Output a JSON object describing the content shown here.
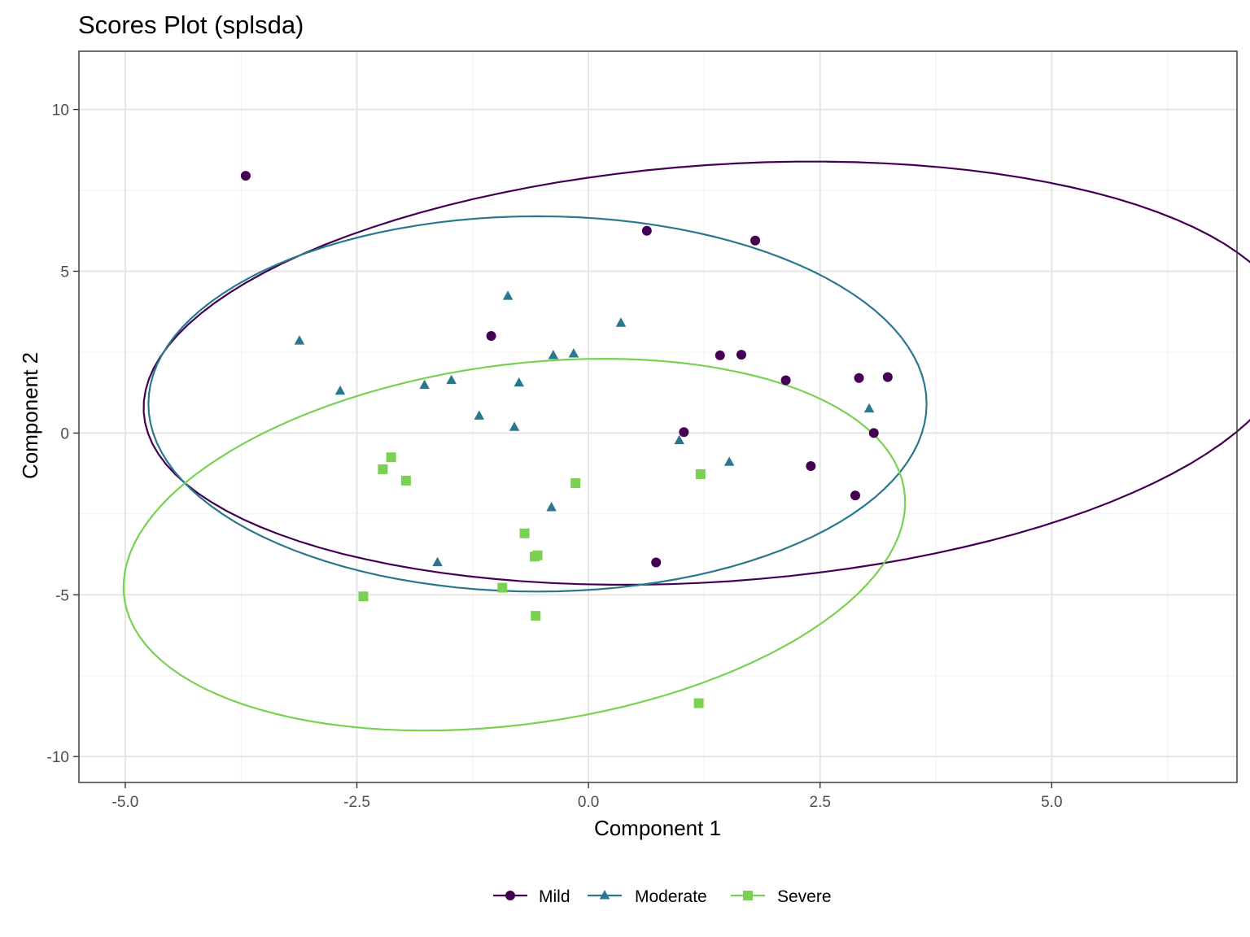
{
  "chart_data": {
    "type": "scatter",
    "title": "Scores Plot (splsda)",
    "xlabel": "Component 1",
    "ylabel": "Component 2",
    "xlim": [
      -5.5,
      7.0
    ],
    "ylim": [
      -10.8,
      11.8
    ],
    "x_ticks": [
      {
        "value": -5.0,
        "label": "-5.0"
      },
      {
        "value": -2.5,
        "label": "-2.5"
      },
      {
        "value": 0.0,
        "label": "0.0"
      },
      {
        "value": 2.5,
        "label": "2.5"
      },
      {
        "value": 5.0,
        "label": "5.0"
      }
    ],
    "y_ticks": [
      {
        "value": -10,
        "label": "-10"
      },
      {
        "value": -5,
        "label": "-5"
      },
      {
        "value": 0,
        "label": "0"
      },
      {
        "value": 5,
        "label": "5"
      },
      {
        "value": 10,
        "label": "10"
      }
    ],
    "grid": true,
    "legend_position": "bottom",
    "series": [
      {
        "name": "Mild",
        "color": "#440154",
        "marker": "circle",
        "points": [
          [
            -3.7,
            7.95
          ],
          [
            0.63,
            6.25
          ],
          [
            1.8,
            5.95
          ],
          [
            -1.05,
            3.0
          ],
          [
            1.42,
            2.4
          ],
          [
            1.65,
            2.42
          ],
          [
            2.13,
            1.63
          ],
          [
            2.92,
            1.7
          ],
          [
            3.23,
            1.73
          ],
          [
            1.03,
            0.03
          ],
          [
            3.08,
            0.0
          ],
          [
            2.4,
            -1.02
          ],
          [
            2.88,
            -1.93
          ],
          [
            0.73,
            -4.0
          ]
        ],
        "ellipse": {
          "center": [
            1.4,
            1.85
          ],
          "rx": 5.8,
          "ry": 6.9,
          "angle_deg": -36
        }
      },
      {
        "name": "Moderate",
        "color": "#2a788e",
        "marker": "triangle",
        "points": [
          [
            -0.87,
            4.23
          ],
          [
            0.35,
            3.4
          ],
          [
            -3.12,
            2.85
          ],
          [
            -0.38,
            2.4
          ],
          [
            -0.16,
            2.45
          ],
          [
            -2.68,
            1.3
          ],
          [
            -1.77,
            1.48
          ],
          [
            -1.48,
            1.63
          ],
          [
            -0.75,
            1.55
          ],
          [
            -1.18,
            0.53
          ],
          [
            -0.8,
            0.18
          ],
          [
            3.03,
            0.75
          ],
          [
            0.98,
            -0.23
          ],
          [
            1.52,
            -0.9
          ],
          [
            -0.4,
            -2.3
          ],
          [
            -1.63,
            -4.0
          ]
        ],
        "ellipse": {
          "center": [
            -0.55,
            0.9
          ],
          "rx": 4.2,
          "ry": 5.8,
          "angle_deg": 0
        }
      },
      {
        "name": "Severe",
        "color": "#7ad151",
        "marker": "square",
        "points": [
          [
            -2.13,
            -0.75
          ],
          [
            -2.22,
            -1.12
          ],
          [
            -1.97,
            -1.47
          ],
          [
            -0.14,
            -1.55
          ],
          [
            1.21,
            -1.27
          ],
          [
            -0.69,
            -3.1
          ],
          [
            -0.55,
            -3.78
          ],
          [
            -0.58,
            -3.82
          ],
          [
            -0.93,
            -4.78
          ],
          [
            -2.43,
            -5.05
          ],
          [
            -0.57,
            -5.65
          ],
          [
            1.19,
            -8.35
          ]
        ],
        "ellipse": {
          "center": [
            -0.8,
            -3.45
          ],
          "rx": 4.0,
          "ry": 5.9,
          "angle_deg": -18
        }
      }
    ]
  }
}
